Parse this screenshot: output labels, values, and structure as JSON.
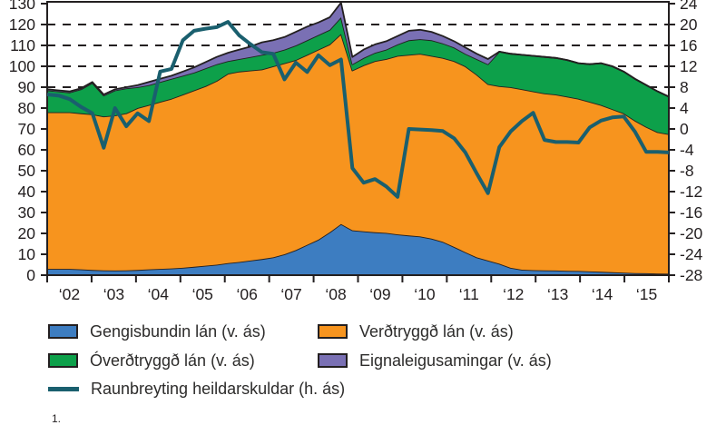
{
  "chart": {
    "footnote_fragment": "1."
  },
  "chart_data": {
    "type": "area",
    "stacked": true,
    "frequency": "quarterly",
    "x_start_year": 2002,
    "x_tick_labels": [
      "‘02",
      "‘03",
      "‘04",
      "‘05",
      "‘06",
      "‘07",
      "‘08",
      "‘09",
      "‘10",
      "‘11",
      "‘12",
      "‘13",
      "‘14",
      "‘15"
    ],
    "axes": {
      "left": {
        "min": 0,
        "max": 130,
        "step": 10,
        "applies_to": "stacked areas (v. ás)"
      },
      "right": {
        "min": -28,
        "max": 24,
        "step": 4,
        "applies_to": "line (h. ás)"
      },
      "gridlines_left_values": [
        90,
        100,
        110,
        120
      ],
      "grid_style": "dashed"
    },
    "series": [
      {
        "name": "Gengisbundin lán (v. ás)",
        "role": "stack",
        "axis": "left",
        "color": "#3d7dc1",
        "values": [
          3.0,
          3.0,
          3.0,
          2.8,
          2.5,
          2.3,
          2.2,
          2.3,
          2.5,
          2.8,
          3.0,
          3.2,
          3.5,
          4.0,
          4.5,
          5.0,
          5.8,
          6.3,
          7.0,
          7.7,
          8.5,
          10.0,
          12.0,
          14.5,
          17.0,
          20.5,
          24.5,
          21.5,
          21.0,
          20.5,
          20.2,
          19.5,
          19.0,
          18.5,
          17.5,
          16.0,
          13.5,
          11.0,
          8.5,
          7.0,
          5.5,
          3.5,
          2.6,
          2.4,
          2.3,
          2.2,
          2.1,
          2.0,
          1.8,
          1.6,
          1.4,
          1.2,
          1.0,
          0.9,
          0.8,
          0.7
        ]
      },
      {
        "name": "Verðtryggð lán (v. ás)",
        "role": "stack",
        "axis": "left",
        "color": "#f7941e",
        "values": [
          75,
          75,
          75,
          74.7,
          74.5,
          73.7,
          74.3,
          75.2,
          77.5,
          78.7,
          80,
          81.3,
          83,
          84.5,
          86,
          88,
          90.7,
          91.2,
          91,
          90.8,
          91.5,
          91.5,
          91,
          91,
          91,
          90,
          91,
          76.5,
          79.5,
          82,
          83.3,
          85.5,
          86.5,
          87.5,
          87.5,
          88,
          89,
          89,
          87.5,
          84.5,
          85,
          86.5,
          86.4,
          85.6,
          84.7,
          84.3,
          83.4,
          82.5,
          81.2,
          79.9,
          78.1,
          76.3,
          73,
          70.1,
          67.7,
          66.8
        ]
      },
      {
        "name": "Óverðtryggð lán (v. ás)",
        "role": "stack",
        "axis": "left",
        "color": "#0da04a",
        "values": [
          10.5,
          10,
          9.5,
          11.5,
          15,
          10,
          12,
          12,
          10,
          9.5,
          9.5,
          9.5,
          9,
          8.5,
          8.5,
          8,
          6,
          6,
          6.5,
          7,
          6.5,
          6.5,
          7,
          7,
          7,
          7,
          8,
          3,
          3.5,
          4,
          4.5,
          5.5,
          7,
          7,
          7.5,
          7,
          6.5,
          6,
          7.5,
          9.5,
          16.5,
          16,
          16.5,
          17,
          17.5,
          17.5,
          17.5,
          17,
          18,
          20,
          20.5,
          20,
          20,
          20,
          19.5,
          18
        ]
      },
      {
        "name": "Eignaleigusamingar (v. ás)",
        "role": "stack",
        "axis": "left",
        "color": "#7a70b4",
        "values": [
          0.5,
          0.5,
          0.5,
          0.5,
          0.5,
          0.5,
          0.5,
          0.5,
          1.0,
          1.5,
          1.5,
          1.5,
          2.0,
          2.5,
          3.0,
          3.5,
          4.0,
          4.5,
          5.0,
          6.0,
          6.0,
          6.0,
          6.5,
          6.5,
          6.0,
          6.0,
          7.0,
          3.5,
          4.0,
          4.0,
          4.0,
          4.0,
          4.5,
          4.5,
          4.0,
          3.5,
          3.0,
          3.0,
          2.5,
          2.5,
          0,
          0,
          0,
          0,
          0,
          0,
          0,
          0,
          0,
          0,
          0,
          0,
          0,
          0,
          0,
          0
        ]
      },
      {
        "name": "Raunbreyting heildarskuldar (h. ás)",
        "role": "line",
        "axis": "right",
        "color": "#1a5f6e",
        "values": [
          6.6,
          6.4,
          5.7,
          4.2,
          3.0,
          -3.6,
          4.0,
          0.5,
          3.0,
          1.5,
          11.0,
          11.5,
          17.0,
          18.8,
          19.2,
          19.5,
          20.5,
          17.9,
          16.2,
          14.7,
          14.4,
          9.5,
          12.7,
          10.9,
          14.1,
          12.2,
          13.3,
          -7.5,
          -10.3,
          -9.6,
          -11.0,
          -13.0,
          0.0,
          -0.1,
          -0.2,
          -0.4,
          -1.8,
          -4.5,
          -8.5,
          -12.3,
          -3.5,
          -0.5,
          1.5,
          3.1,
          -2.1,
          -2.5,
          -2.5,
          -2.6,
          0.3,
          1.6,
          2.2,
          2.4,
          -0.5,
          -4.4,
          -4.4,
          -4.5
        ]
      }
    ]
  }
}
